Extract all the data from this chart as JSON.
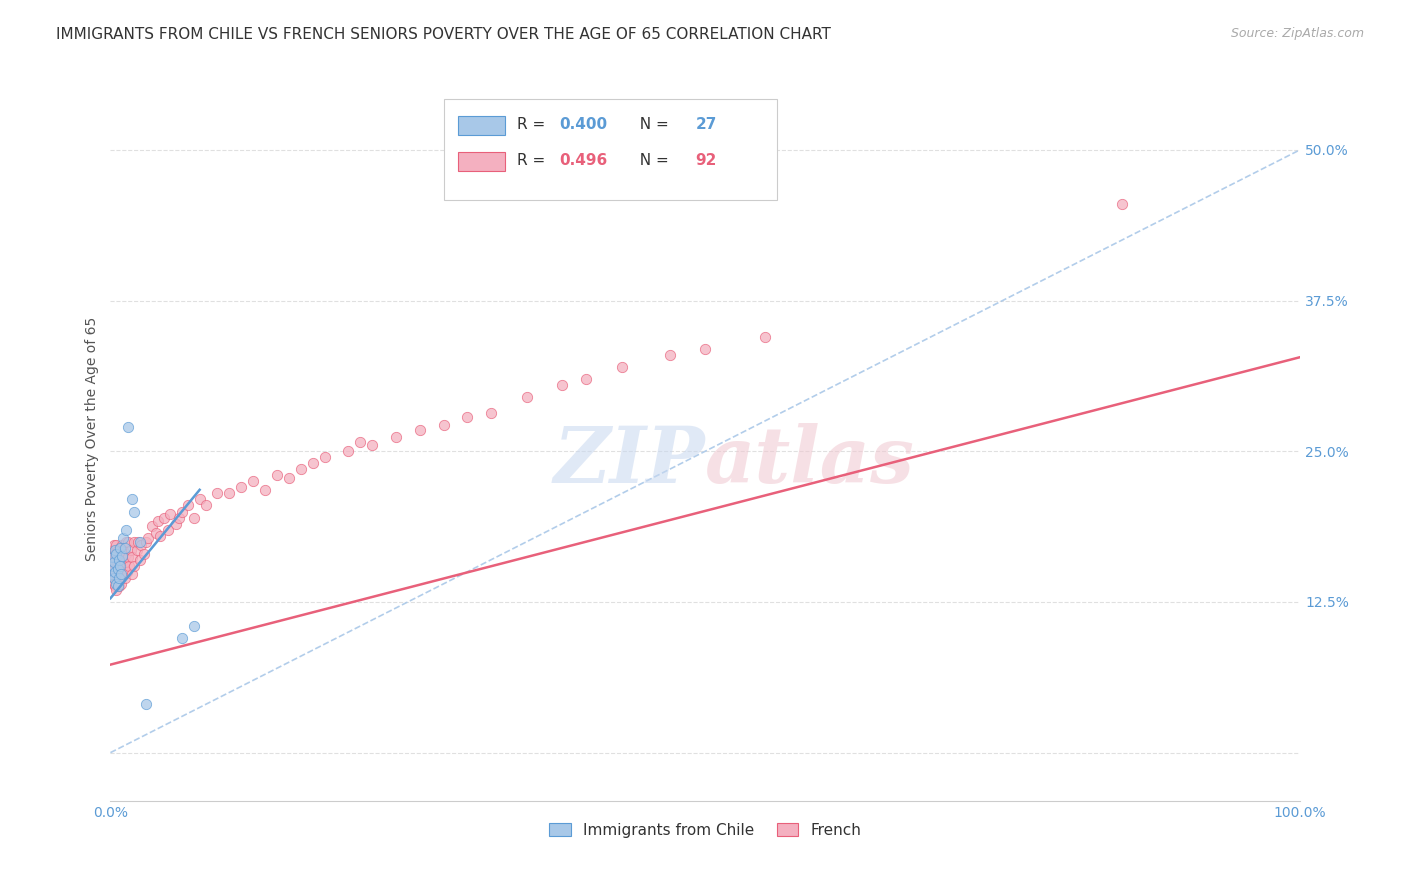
{
  "title": "IMMIGRANTS FROM CHILE VS FRENCH SENIORS POVERTY OVER THE AGE OF 65 CORRELATION CHART",
  "source": "Source: ZipAtlas.com",
  "ylabel": "Seniors Poverty Over the Age of 65",
  "xlim": [
    0,
    1.0
  ],
  "ylim": [
    -0.04,
    0.56
  ],
  "xticks": [
    0.0,
    0.25,
    0.5,
    0.75,
    1.0
  ],
  "xticklabels": [
    "0.0%",
    "",
    "",
    "",
    "100.0%"
  ],
  "ytick_positions": [
    0.0,
    0.125,
    0.25,
    0.375,
    0.5
  ],
  "yticklabels": [
    "",
    "12.5%",
    "25.0%",
    "37.5%",
    "50.0%"
  ],
  "chile_color": "#a8c8e8",
  "chile_edge": "#5b9bd5",
  "french_color": "#f4b0c0",
  "french_edge": "#e8607a",
  "background_color": "#ffffff",
  "grid_color": "#e0e0e0",
  "chile_line_x": [
    0.0,
    0.075
  ],
  "chile_line_y": [
    0.128,
    0.218
  ],
  "french_line_x": [
    0.0,
    1.0
  ],
  "french_line_y": [
    0.073,
    0.328
  ],
  "diag_line_x": [
    0.0,
    1.0
  ],
  "diag_line_y": [
    0.0,
    0.5
  ],
  "chile_scatter_x": [
    0.001,
    0.002,
    0.002,
    0.003,
    0.003,
    0.004,
    0.004,
    0.005,
    0.005,
    0.006,
    0.006,
    0.007,
    0.007,
    0.008,
    0.008,
    0.009,
    0.01,
    0.011,
    0.012,
    0.013,
    0.015,
    0.018,
    0.02,
    0.025,
    0.03,
    0.06,
    0.07
  ],
  "chile_scatter_y": [
    0.148,
    0.155,
    0.162,
    0.145,
    0.158,
    0.15,
    0.168,
    0.14,
    0.165,
    0.138,
    0.152,
    0.16,
    0.145,
    0.17,
    0.155,
    0.148,
    0.163,
    0.178,
    0.17,
    0.185,
    0.27,
    0.21,
    0.2,
    0.175,
    0.04,
    0.095,
    0.105
  ],
  "french_scatter_x": [
    0.001,
    0.001,
    0.002,
    0.002,
    0.002,
    0.003,
    0.003,
    0.003,
    0.003,
    0.004,
    0.004,
    0.004,
    0.005,
    0.005,
    0.005,
    0.005,
    0.006,
    0.006,
    0.006,
    0.007,
    0.007,
    0.007,
    0.008,
    0.008,
    0.008,
    0.009,
    0.009,
    0.01,
    0.01,
    0.01,
    0.011,
    0.011,
    0.012,
    0.012,
    0.013,
    0.013,
    0.014,
    0.015,
    0.015,
    0.016,
    0.017,
    0.018,
    0.018,
    0.02,
    0.02,
    0.022,
    0.023,
    0.025,
    0.026,
    0.028,
    0.03,
    0.032,
    0.035,
    0.038,
    0.04,
    0.042,
    0.045,
    0.048,
    0.05,
    0.055,
    0.058,
    0.06,
    0.065,
    0.07,
    0.075,
    0.08,
    0.09,
    0.1,
    0.11,
    0.12,
    0.13,
    0.14,
    0.15,
    0.16,
    0.17,
    0.18,
    0.2,
    0.21,
    0.22,
    0.24,
    0.26,
    0.28,
    0.3,
    0.32,
    0.35,
    0.38,
    0.4,
    0.43,
    0.47,
    0.5,
    0.55,
    0.85
  ],
  "french_scatter_y": [
    0.15,
    0.162,
    0.145,
    0.158,
    0.168,
    0.14,
    0.152,
    0.16,
    0.172,
    0.138,
    0.148,
    0.165,
    0.135,
    0.15,
    0.16,
    0.172,
    0.143,
    0.155,
    0.168,
    0.138,
    0.15,
    0.162,
    0.145,
    0.158,
    0.17,
    0.14,
    0.155,
    0.148,
    0.162,
    0.172,
    0.155,
    0.168,
    0.145,
    0.158,
    0.165,
    0.175,
    0.15,
    0.162,
    0.175,
    0.155,
    0.168,
    0.148,
    0.162,
    0.175,
    0.155,
    0.168,
    0.175,
    0.16,
    0.172,
    0.165,
    0.175,
    0.178,
    0.188,
    0.182,
    0.192,
    0.18,
    0.195,
    0.185,
    0.198,
    0.19,
    0.195,
    0.2,
    0.205,
    0.195,
    0.21,
    0.205,
    0.215,
    0.215,
    0.22,
    0.225,
    0.218,
    0.23,
    0.228,
    0.235,
    0.24,
    0.245,
    0.25,
    0.258,
    0.255,
    0.262,
    0.268,
    0.272,
    0.278,
    0.282,
    0.295,
    0.305,
    0.31,
    0.32,
    0.33,
    0.335,
    0.345,
    0.455
  ],
  "scatter_size": 55,
  "title_fontsize": 11,
  "tick_fontsize": 10,
  "source_fontsize": 9
}
